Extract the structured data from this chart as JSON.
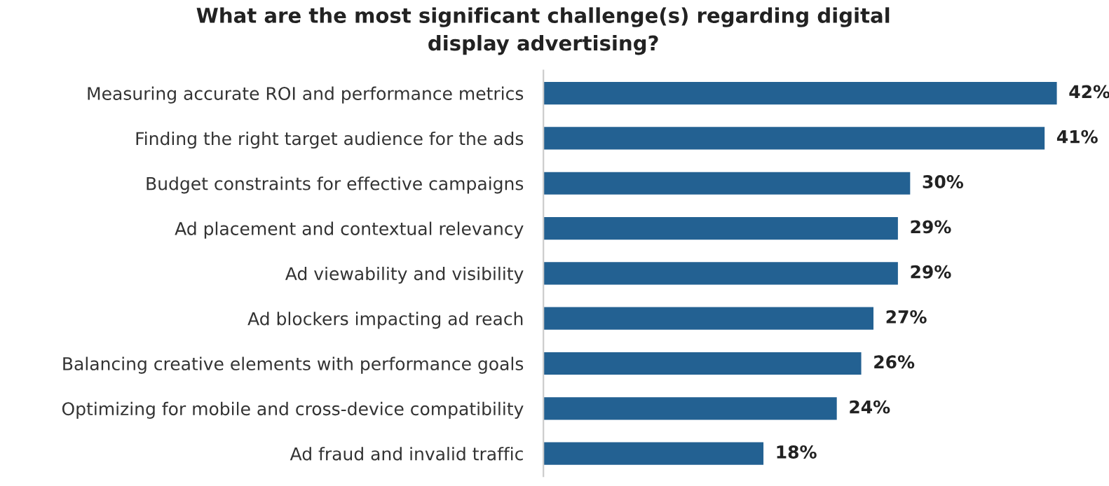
{
  "chart_data": {
    "type": "bar",
    "orientation": "horizontal",
    "title": "What are the most significant challenge(s) regarding digital\ndisplay advertising?",
    "categories": [
      "Measuring accurate ROI and performance metrics",
      "Finding the right target audience for the ads",
      "Budget constraints for effective campaigns",
      "Ad placement and contextual relevancy",
      "Ad viewability and visibility",
      "Ad blockers impacting ad reach",
      "Balancing creative elements with performance goals",
      "Optimizing for mobile and cross-device compatibility",
      "Ad fraud and invalid traffic"
    ],
    "values": [
      42,
      41,
      30,
      29,
      29,
      27,
      26,
      24,
      18
    ],
    "value_labels": [
      "42%",
      "41%",
      "30%",
      "29%",
      "29%",
      "27%",
      "26%",
      "24%",
      "18%"
    ],
    "color": "#236192",
    "grid": false,
    "legend": false
  }
}
